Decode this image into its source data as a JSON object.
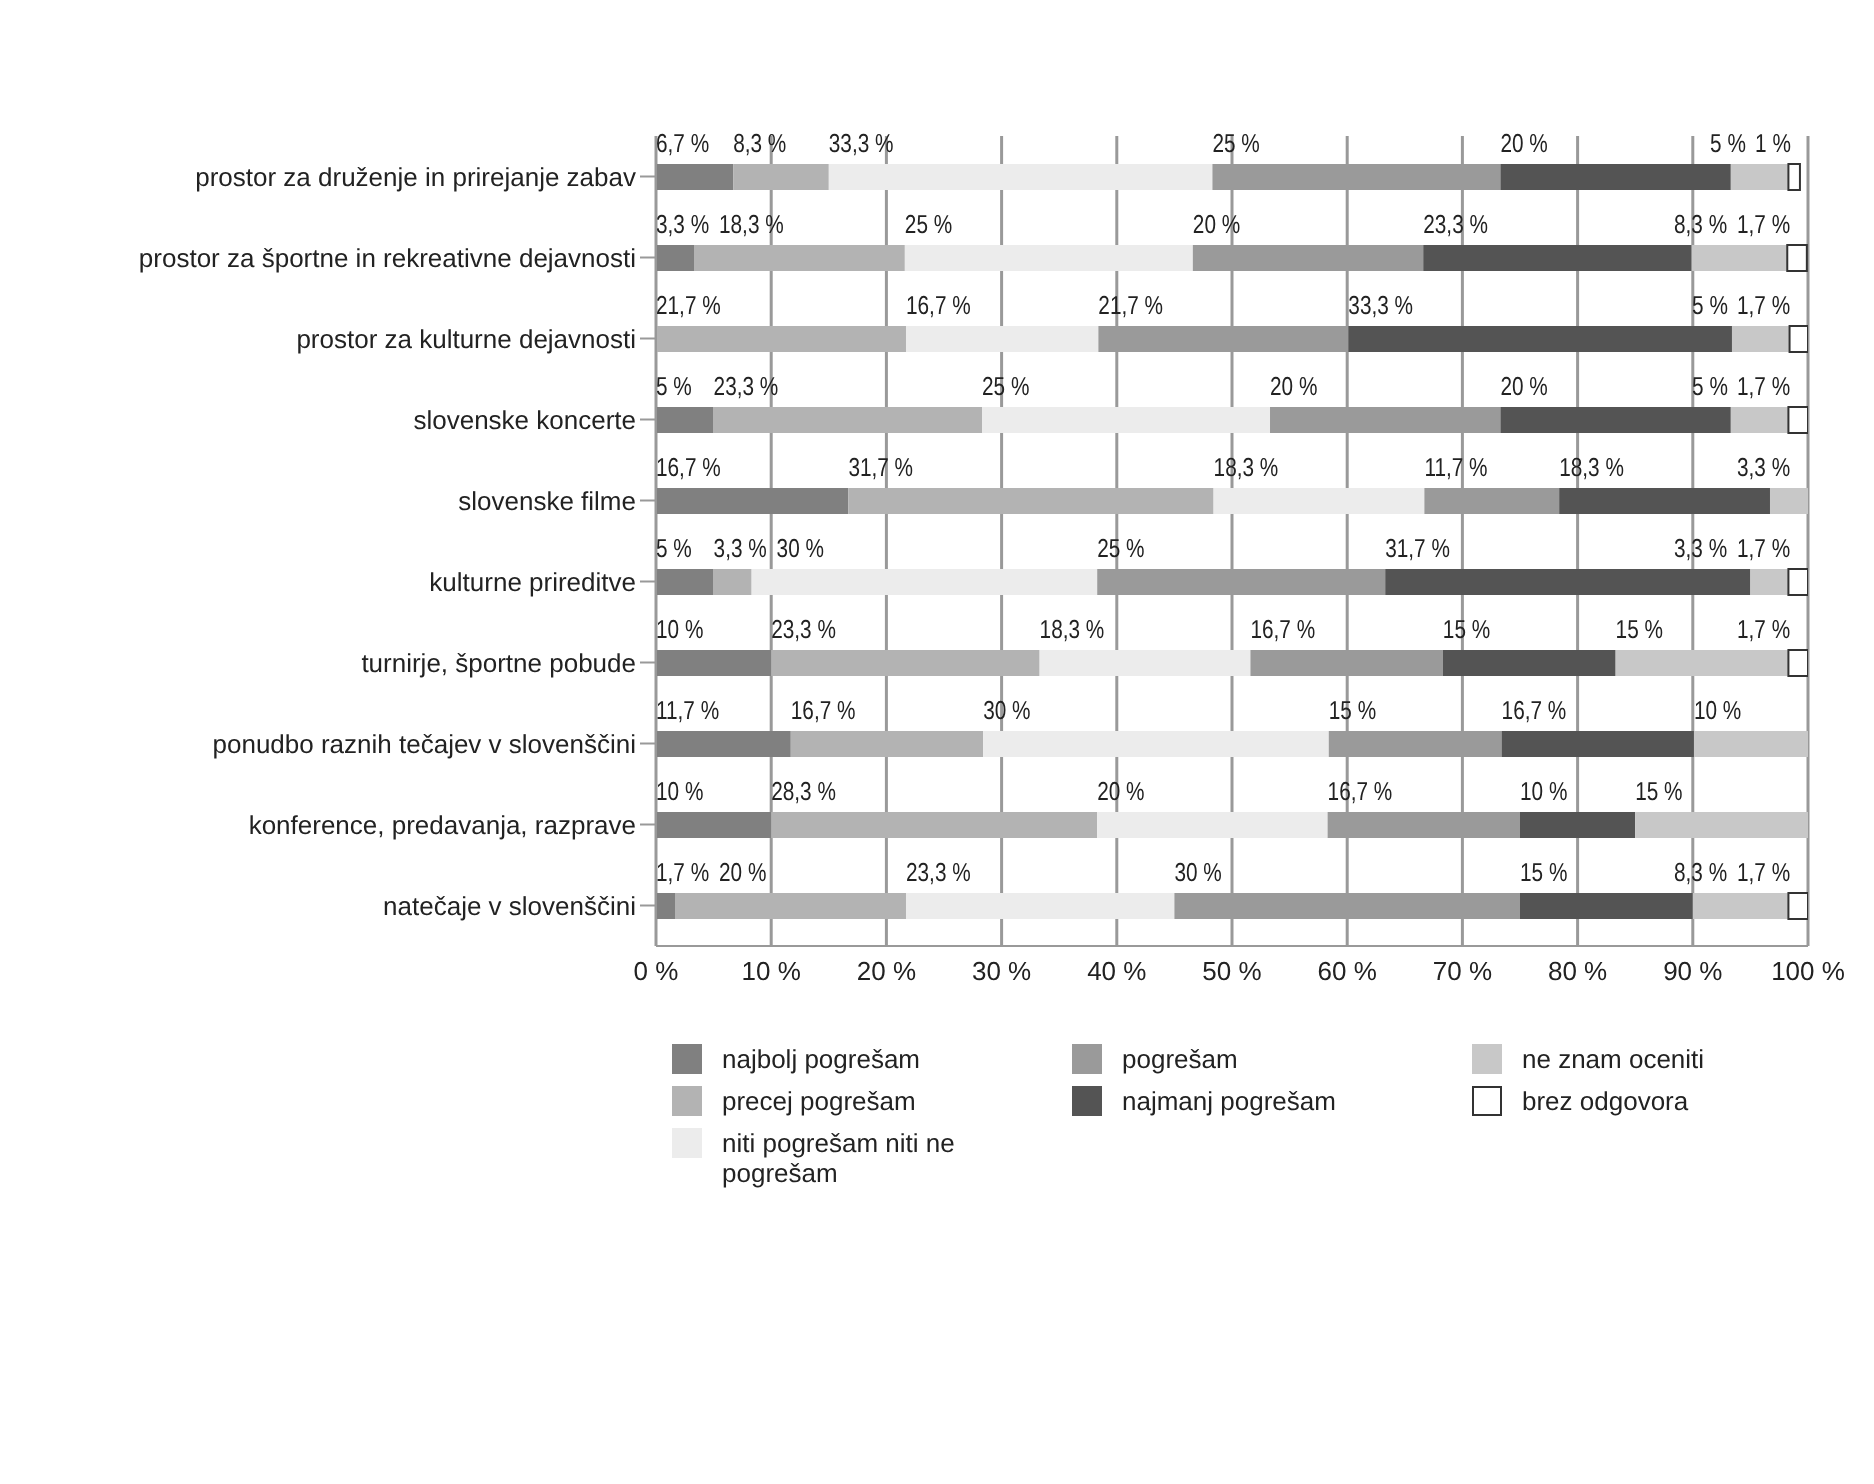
{
  "chart_data": {
    "type": "bar",
    "orientation": "horizontal",
    "stacked": true,
    "categories": [
      "prostor za druženje in prirejanje zabav",
      "prostor za športne in rekreativne dejavnosti",
      "prostor za kulturne dejavnosti",
      "slovenske koncerte",
      "slovenske filme",
      "kulturne prireditve",
      "turnirje, športne pobude",
      "ponudbo raznih tečajev v slovenščini",
      "konference, predavanja, razprave",
      "natečaje v slovenščini"
    ],
    "series": [
      {
        "name": "najbolj pogrešam",
        "color": "#808080",
        "values": [
          6.7,
          3.3,
          null,
          5,
          16.7,
          5,
          10,
          11.7,
          10,
          1.7
        ],
        "value_labels": [
          "6,7 %",
          "3,3 %",
          null,
          "5 %",
          "16,7 %",
          "5 %",
          "10 %",
          "11,7 %",
          "10 %",
          "1,7 %"
        ]
      },
      {
        "name": "precej pogrešam",
        "color": "#b3b3b3",
        "values": [
          8.3,
          18.3,
          21.7,
          23.3,
          31.7,
          3.3,
          23.3,
          16.7,
          28.3,
          20
        ],
        "value_labels": [
          "8,3 %",
          "18,3 %",
          "21,7 %",
          "23,3 %",
          "31,7 %",
          "3,3 %",
          "23,3 %",
          "16,7 %",
          "28,3 %",
          "20 %"
        ]
      },
      {
        "name": "niti pogrešam niti ne pogrešam",
        "color": "#ececec",
        "values": [
          33.3,
          25,
          16.7,
          25,
          18.3,
          30,
          18.3,
          30,
          20,
          23.3
        ],
        "value_labels": [
          "33,3 %",
          "25 %",
          "16,7 %",
          "25 %",
          "18,3 %",
          "30 %",
          "18,3 %",
          "30 %",
          "20 %",
          "23,3 %"
        ]
      },
      {
        "name": "pogrešam",
        "color": "#9a9a9a",
        "values": [
          25,
          20,
          21.7,
          20,
          11.7,
          25,
          16.7,
          15,
          16.7,
          30
        ],
        "value_labels": [
          "25 %",
          "20 %",
          "21,7 %",
          "20 %",
          "11,7 %",
          "25 %",
          "16,7 %",
          "15 %",
          "16,7 %",
          "30 %"
        ]
      },
      {
        "name": "najmanj pogrešam",
        "color": "#545454",
        "values": [
          20,
          23.3,
          33.3,
          20,
          18.3,
          31.7,
          15,
          16.7,
          10,
          15
        ],
        "value_labels": [
          "20 %",
          "23,3 %",
          "33,3 %",
          "20 %",
          "18,3 %",
          "31,7 %",
          "15 %",
          "16,7 %",
          "10 %",
          "15 %"
        ]
      },
      {
        "name": "ne znam oceniti",
        "color": "#c8c8c8",
        "values": [
          5,
          8.3,
          5,
          5,
          3.3,
          3.3,
          15,
          10,
          15,
          8.3
        ],
        "value_labels": [
          "5 %",
          "8,3 %",
          "5 %",
          "5 %",
          "3,3 %",
          "3,3 %",
          "15 %",
          "10 %",
          "15 %",
          "8,3 %"
        ]
      },
      {
        "name": "brez odgovora",
        "color": "#ffffff",
        "values": [
          1,
          1.7,
          1.7,
          1.7,
          null,
          1.7,
          1.7,
          null,
          null,
          1.7
        ],
        "value_labels": [
          "1 %",
          "1,7 %",
          "1,7 %",
          "1,7 %",
          null,
          "1,7 %",
          "1,7 %",
          null,
          null,
          "1,7 %"
        ]
      }
    ],
    "xlim": [
      0,
      100
    ],
    "xticks": [
      {
        "value": 0,
        "label": "0 %"
      },
      {
        "value": 10,
        "label": "10 %"
      },
      {
        "value": 20,
        "label": "20 %"
      },
      {
        "value": 30,
        "label": "30 %"
      },
      {
        "value": 40,
        "label": "40 %"
      },
      {
        "value": 50,
        "label": "50 %"
      },
      {
        "value": 60,
        "label": "60 %"
      },
      {
        "value": 70,
        "label": "70 %"
      },
      {
        "value": 80,
        "label": "80 %"
      },
      {
        "value": 90,
        "label": "90 %"
      },
      {
        "value": 100,
        "label": "100 %"
      }
    ],
    "grid": "x",
    "legend": "bottom"
  }
}
